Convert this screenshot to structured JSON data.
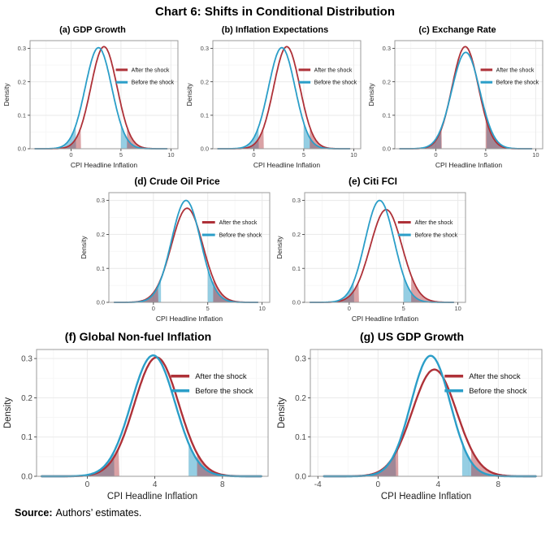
{
  "page": {
    "title": "Chart 6: Shifts in Conditional Distribution",
    "source_label": "Source:",
    "source_text": "Authors’ estimates."
  },
  "colors": {
    "after": "#AE3138",
    "before": "#2B9EC8",
    "after_fill": "rgba(174,49,56,0.45)",
    "before_fill": "rgba(43,158,200,0.50)",
    "grid_major": "#e9e9e9",
    "grid_minor": "#f5f5f5",
    "panel_border": "#9b9b9b",
    "axis_text": "#4a4a4a",
    "tick_mark": "#333333"
  },
  "legend": {
    "after": "After the shock",
    "before": "Before the shock"
  },
  "chart_data": [
    {
      "id": "a",
      "row": 1,
      "type": "density",
      "title": "(a) GDP Growth",
      "xlabel": "CPI Headline Inflation",
      "ylabel": "Density",
      "xlim": [
        -4.1,
        10.7
      ],
      "ylim": [
        0,
        0.323
      ],
      "xticks": [
        0,
        5,
        10
      ],
      "yticks": [
        0,
        0.1,
        0.2,
        0.3
      ],
      "curve_range": [
        -3.6,
        9.6
      ],
      "series": [
        {
          "name": "After the shock",
          "color": "after",
          "mean": 3.3,
          "sd": 1.31,
          "peak": 0.305,
          "shade_below": 1.0,
          "shade_above": 5.6
        },
        {
          "name": "Before the shock",
          "color": "before",
          "mean": 2.75,
          "sd": 1.33,
          "peak": 0.302,
          "shade_below": 0.5,
          "shade_above": 5.0
        }
      ]
    },
    {
      "id": "b",
      "row": 1,
      "type": "density",
      "title": "(b) Inflation Expectations",
      "xlabel": "CPI Headline Inflation",
      "ylabel": "Density",
      "xlim": [
        -4.1,
        10.7
      ],
      "ylim": [
        0,
        0.323
      ],
      "xticks": [
        0,
        5,
        10
      ],
      "yticks": [
        0,
        0.1,
        0.2,
        0.3
      ],
      "curve_range": [
        -3.6,
        9.6
      ],
      "series": [
        {
          "name": "After the shock",
          "color": "after",
          "mean": 3.3,
          "sd": 1.31,
          "peak": 0.305,
          "shade_below": 1.0,
          "shade_above": 5.6
        },
        {
          "name": "Before the shock",
          "color": "before",
          "mean": 2.8,
          "sd": 1.33,
          "peak": 0.302,
          "shade_below": 0.5,
          "shade_above": 5.0
        }
      ]
    },
    {
      "id": "c",
      "row": 1,
      "type": "density",
      "title": "(c) Exchange Rate",
      "xlabel": "CPI Headline Inflation",
      "ylabel": "Density",
      "xlim": [
        -4.1,
        10.7
      ],
      "ylim": [
        0,
        0.323
      ],
      "xticks": [
        0,
        5,
        10
      ],
      "yticks": [
        0,
        0.1,
        0.2,
        0.3
      ],
      "curve_range": [
        -3.6,
        9.6
      ],
      "series": [
        {
          "name": "After the shock",
          "color": "after",
          "mean": 2.95,
          "sd": 1.32,
          "peak": 0.305,
          "shade_below": 0.6,
          "shade_above": 5.0
        },
        {
          "name": "Before the shock",
          "color": "before",
          "mean": 3.0,
          "sd": 1.4,
          "peak": 0.288,
          "shade_below": 0.55,
          "shade_above": 5.1
        }
      ]
    },
    {
      "id": "d",
      "row": 2,
      "type": "density",
      "title": "(d) Crude Oil Price",
      "xlabel": "CPI Headline Inflation",
      "ylabel": "Density",
      "xlim": [
        -4.1,
        10.7
      ],
      "ylim": [
        0,
        0.323
      ],
      "xticks": [
        0,
        5,
        10
      ],
      "yticks": [
        0,
        0.1,
        0.2,
        0.3
      ],
      "curve_range": [
        -3.6,
        9.6
      ],
      "series": [
        {
          "name": "After the shock",
          "color": "after",
          "mean": 3.1,
          "sd": 1.45,
          "peak": 0.277,
          "shade_below": 0.45,
          "shade_above": 5.5
        },
        {
          "name": "Before the shock",
          "color": "before",
          "mean": 3.0,
          "sd": 1.34,
          "peak": 0.3,
          "shade_below": 0.7,
          "shade_above": 5.0
        }
      ]
    },
    {
      "id": "e",
      "row": 2,
      "type": "density",
      "title": "(e) Citi FCI",
      "xlabel": "CPI Headline Inflation",
      "ylabel": "Density",
      "xlim": [
        -4.1,
        10.7
      ],
      "ylim": [
        0,
        0.323
      ],
      "xticks": [
        0,
        5,
        10
      ],
      "yticks": [
        0,
        0.1,
        0.2,
        0.3
      ],
      "curve_range": [
        -3.6,
        9.6
      ],
      "series": [
        {
          "name": "After the shock",
          "color": "after",
          "mean": 3.4,
          "sd": 1.46,
          "peak": 0.273,
          "shade_below": 0.9,
          "shade_above": 5.7
        },
        {
          "name": "Before the shock",
          "color": "before",
          "mean": 2.8,
          "sd": 1.34,
          "peak": 0.3,
          "shade_below": 0.45,
          "shade_above": 5.0
        }
      ]
    },
    {
      "id": "f",
      "row": 3,
      "type": "density",
      "title": "(f) Global Non-fuel Inflation",
      "xlabel": "CPI Headline Inflation",
      "ylabel": "Density",
      "xlim": [
        -3.0,
        10.7
      ],
      "ylim": [
        0,
        0.323
      ],
      "xticks": [
        0,
        4,
        8
      ],
      "yticks": [
        0,
        0.1,
        0.2,
        0.3
      ],
      "curve_range": [
        -2.7,
        10.3
      ],
      "series": [
        {
          "name": "After the shock",
          "color": "after",
          "mean": 4.1,
          "sd": 1.32,
          "peak": 0.303,
          "shade_below": 1.9,
          "shade_above": 6.5
        },
        {
          "name": "Before the shock",
          "color": "before",
          "mean": 3.9,
          "sd": 1.3,
          "peak": 0.308,
          "shade_below": 1.6,
          "shade_above": 6.0
        }
      ]
    },
    {
      "id": "g",
      "row": 3,
      "type": "density",
      "title": "(g) US GDP Growth",
      "xlabel": "CPI Headline Inflation",
      "ylabel": "Density",
      "xlim": [
        -4.5,
        10.9
      ],
      "ylim": [
        0,
        0.323
      ],
      "xticks": [
        -4,
        0,
        4,
        8
      ],
      "yticks": [
        0,
        0.1,
        0.2,
        0.3
      ],
      "curve_range": [
        -3.6,
        10.5
      ],
      "series": [
        {
          "name": "After the shock",
          "color": "after",
          "mean": 3.75,
          "sd": 1.48,
          "peak": 0.272,
          "shade_below": 1.35,
          "shade_above": 6.2
        },
        {
          "name": "Before the shock",
          "color": "before",
          "mean": 3.5,
          "sd": 1.31,
          "peak": 0.307,
          "shade_below": 1.2,
          "shade_above": 5.6
        }
      ]
    }
  ]
}
